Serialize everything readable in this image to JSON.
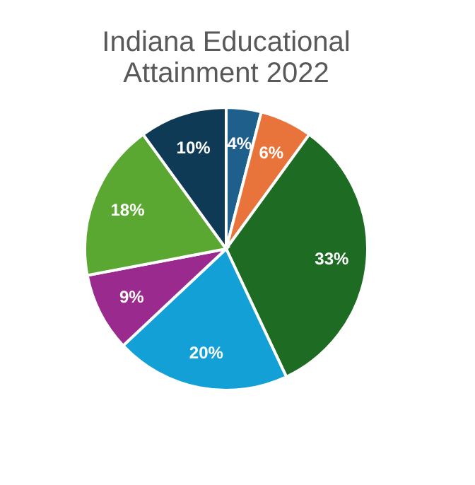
{
  "chart_data": {
    "type": "pie",
    "title": "Indiana Educational Attainment 2022",
    "categories": [
      null,
      null,
      null,
      null,
      null,
      null,
      null
    ],
    "values": [
      4,
      6,
      33,
      20,
      9,
      18,
      10
    ],
    "value_labels": [
      "4%",
      "6%",
      "33%",
      "20%",
      "9%",
      "18%",
      "10%"
    ],
    "colors": [
      "#1f5f8b",
      "#e8743b",
      "#1e6b24",
      "#12a0d7",
      "#9b2a8e",
      "#5aa832",
      "#0e3a56"
    ],
    "legend": false
  }
}
